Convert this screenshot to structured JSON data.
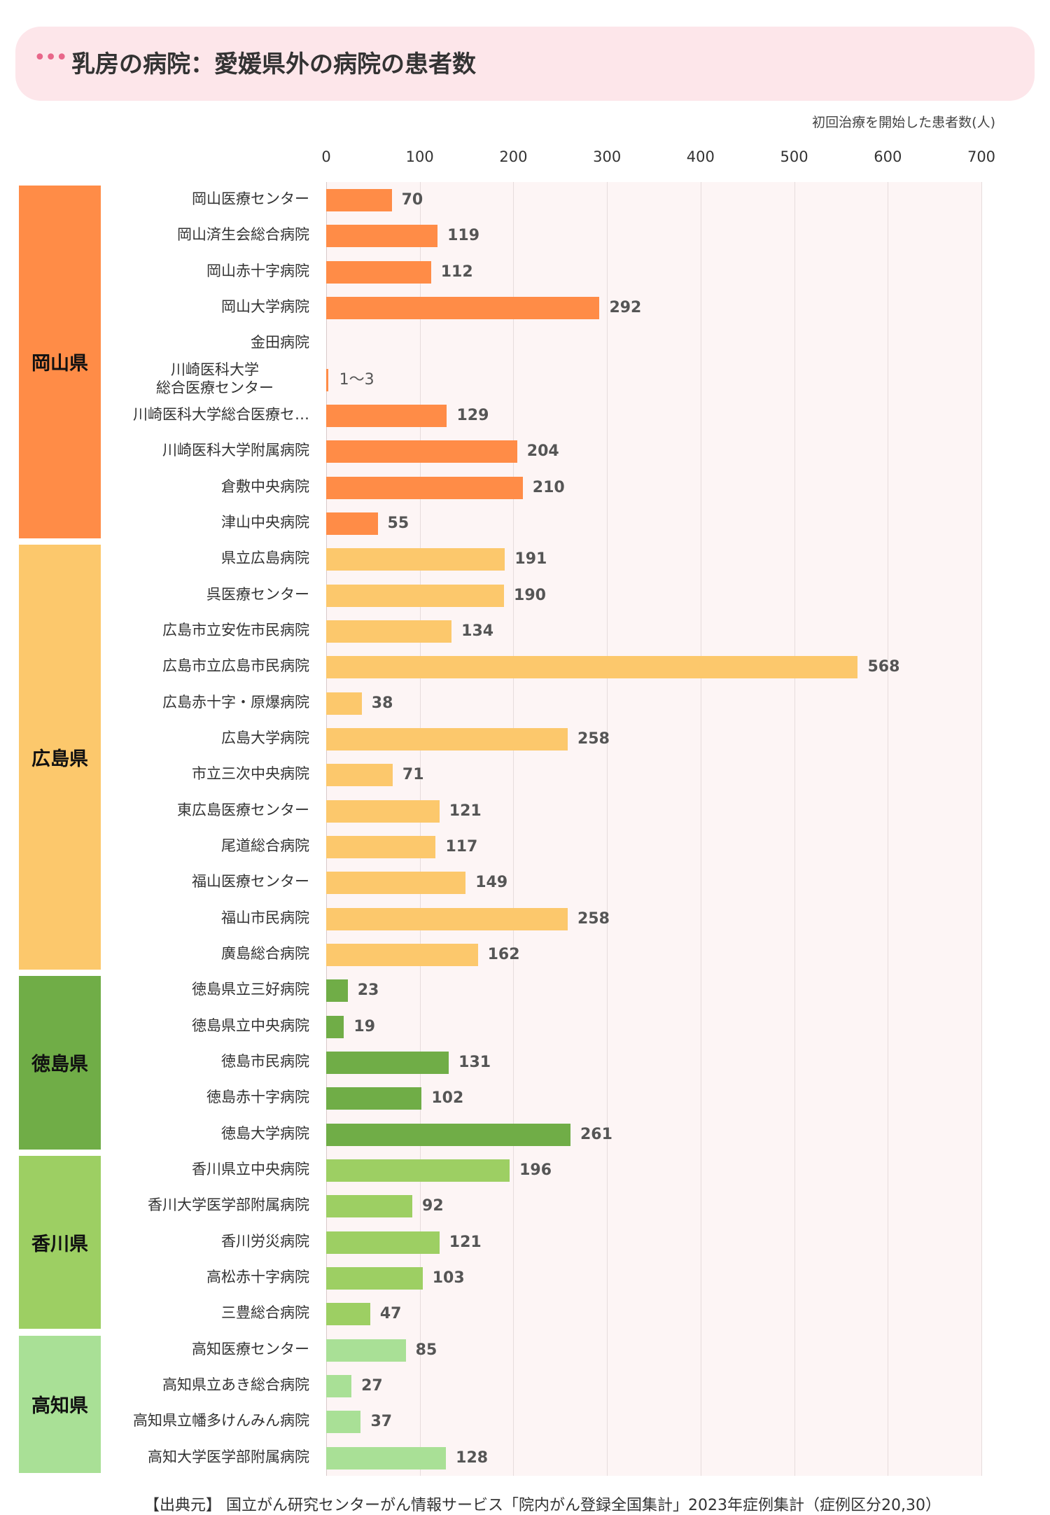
{
  "header": {
    "title": "乳房の病院：愛媛県外の病院の患者数"
  },
  "unit_label": "初回治療を開始した患者数(人)",
  "source": "【出典元】 国立がん研究センターがん情報サービス「院内がん登録全国集計」2023年症例集計（症例区分20,30）",
  "colors": {
    "岡山県": "#ff8c47",
    "広島県": "#fcc86c",
    "徳島県": "#70ad47",
    "香川県": "#9dcf63",
    "高知県": "#a9e096"
  },
  "chart_data": {
    "type": "bar",
    "orientation": "horizontal",
    "xlim": [
      0,
      700
    ],
    "xticks": [
      "0",
      "100",
      "200",
      "300",
      "400",
      "500",
      "600",
      "700"
    ],
    "xlabel": "初回治療を開始した患者数(人)",
    "title": "乳房の病院：愛媛県外の病院の患者数",
    "grid": true,
    "groups": [
      {
        "name": "岡山県",
        "start": 0,
        "count": 10
      },
      {
        "name": "広島県",
        "start": 10,
        "count": 12
      },
      {
        "name": "徳島県",
        "start": 22,
        "count": 5
      },
      {
        "name": "香川県",
        "start": 27,
        "count": 5
      },
      {
        "name": "高知県",
        "start": 32,
        "count": 4
      }
    ],
    "categories": [
      "岡山医療センター",
      "岡山済生会総合病院",
      "岡山赤十字病院",
      "岡山大学病院",
      "金田病院",
      "川崎医科大学\n総合医療センター",
      "川崎医科大学総合医療セ…",
      "川崎医科大学附属病院",
      "倉敷中央病院",
      "津山中央病院",
      "県立広島病院",
      "呉医療センター",
      "広島市立安佐市民病院",
      "広島市立広島市民病院",
      "広島赤十字・原爆病院",
      "広島大学病院",
      "市立三次中央病院",
      "東広島医療センター",
      "尾道総合病院",
      "福山医療センター",
      "福山市民病院",
      "廣島総合病院",
      "徳島県立三好病院",
      "徳島県立中央病院",
      "徳島市民病院",
      "徳島赤十字病院",
      "徳島大学病院",
      "香川県立中央病院",
      "香川大学医学部附属病院",
      "香川労災病院",
      "高松赤十字病院",
      "三豊総合病院",
      "高知医療センター",
      "高知県立あき総合病院",
      "高知県立幡多けんみん病院",
      "高知大学医学部附属病院"
    ],
    "values": [
      70,
      119,
      112,
      292,
      null,
      2,
      129,
      204,
      210,
      55,
      191,
      190,
      134,
      568,
      38,
      258,
      71,
      121,
      117,
      149,
      258,
      162,
      23,
      19,
      131,
      102,
      261,
      196,
      92,
      121,
      103,
      47,
      85,
      27,
      37,
      128
    ],
    "value_labels": [
      "70",
      "119",
      "112",
      "292",
      "",
      "1～3",
      "129",
      "204",
      "210",
      "55",
      "191",
      "190",
      "134",
      "568",
      "38",
      "258",
      "71",
      "121",
      "117",
      "149",
      "258",
      "162",
      "23",
      "19",
      "131",
      "102",
      "261",
      "196",
      "92",
      "121",
      "103",
      "47",
      "85",
      "27",
      "37",
      "128"
    ]
  }
}
